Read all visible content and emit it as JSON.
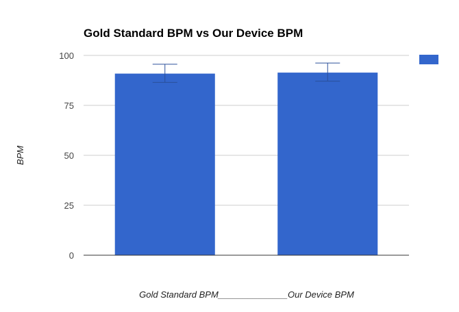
{
  "chart_data": {
    "type": "bar",
    "title": "Gold Standard BPM vs Our Device BPM",
    "xlabel": "Gold Standard BPM______________Our Device BPM",
    "ylabel": "BPM",
    "ylim": [
      0,
      100
    ],
    "yticks": [
      "0",
      "25",
      "50",
      "75",
      "100"
    ],
    "grid": true,
    "legend_position": "right",
    "series": [
      {
        "name": "",
        "color": "#3366cc",
        "values": [
          90.9,
          91.4
        ],
        "error_high": [
          95.6,
          96.2
        ],
        "error_low": [
          86.5,
          87.1
        ]
      }
    ],
    "categories": [
      "Gold Standard BPM",
      "Our Device BPM"
    ]
  }
}
